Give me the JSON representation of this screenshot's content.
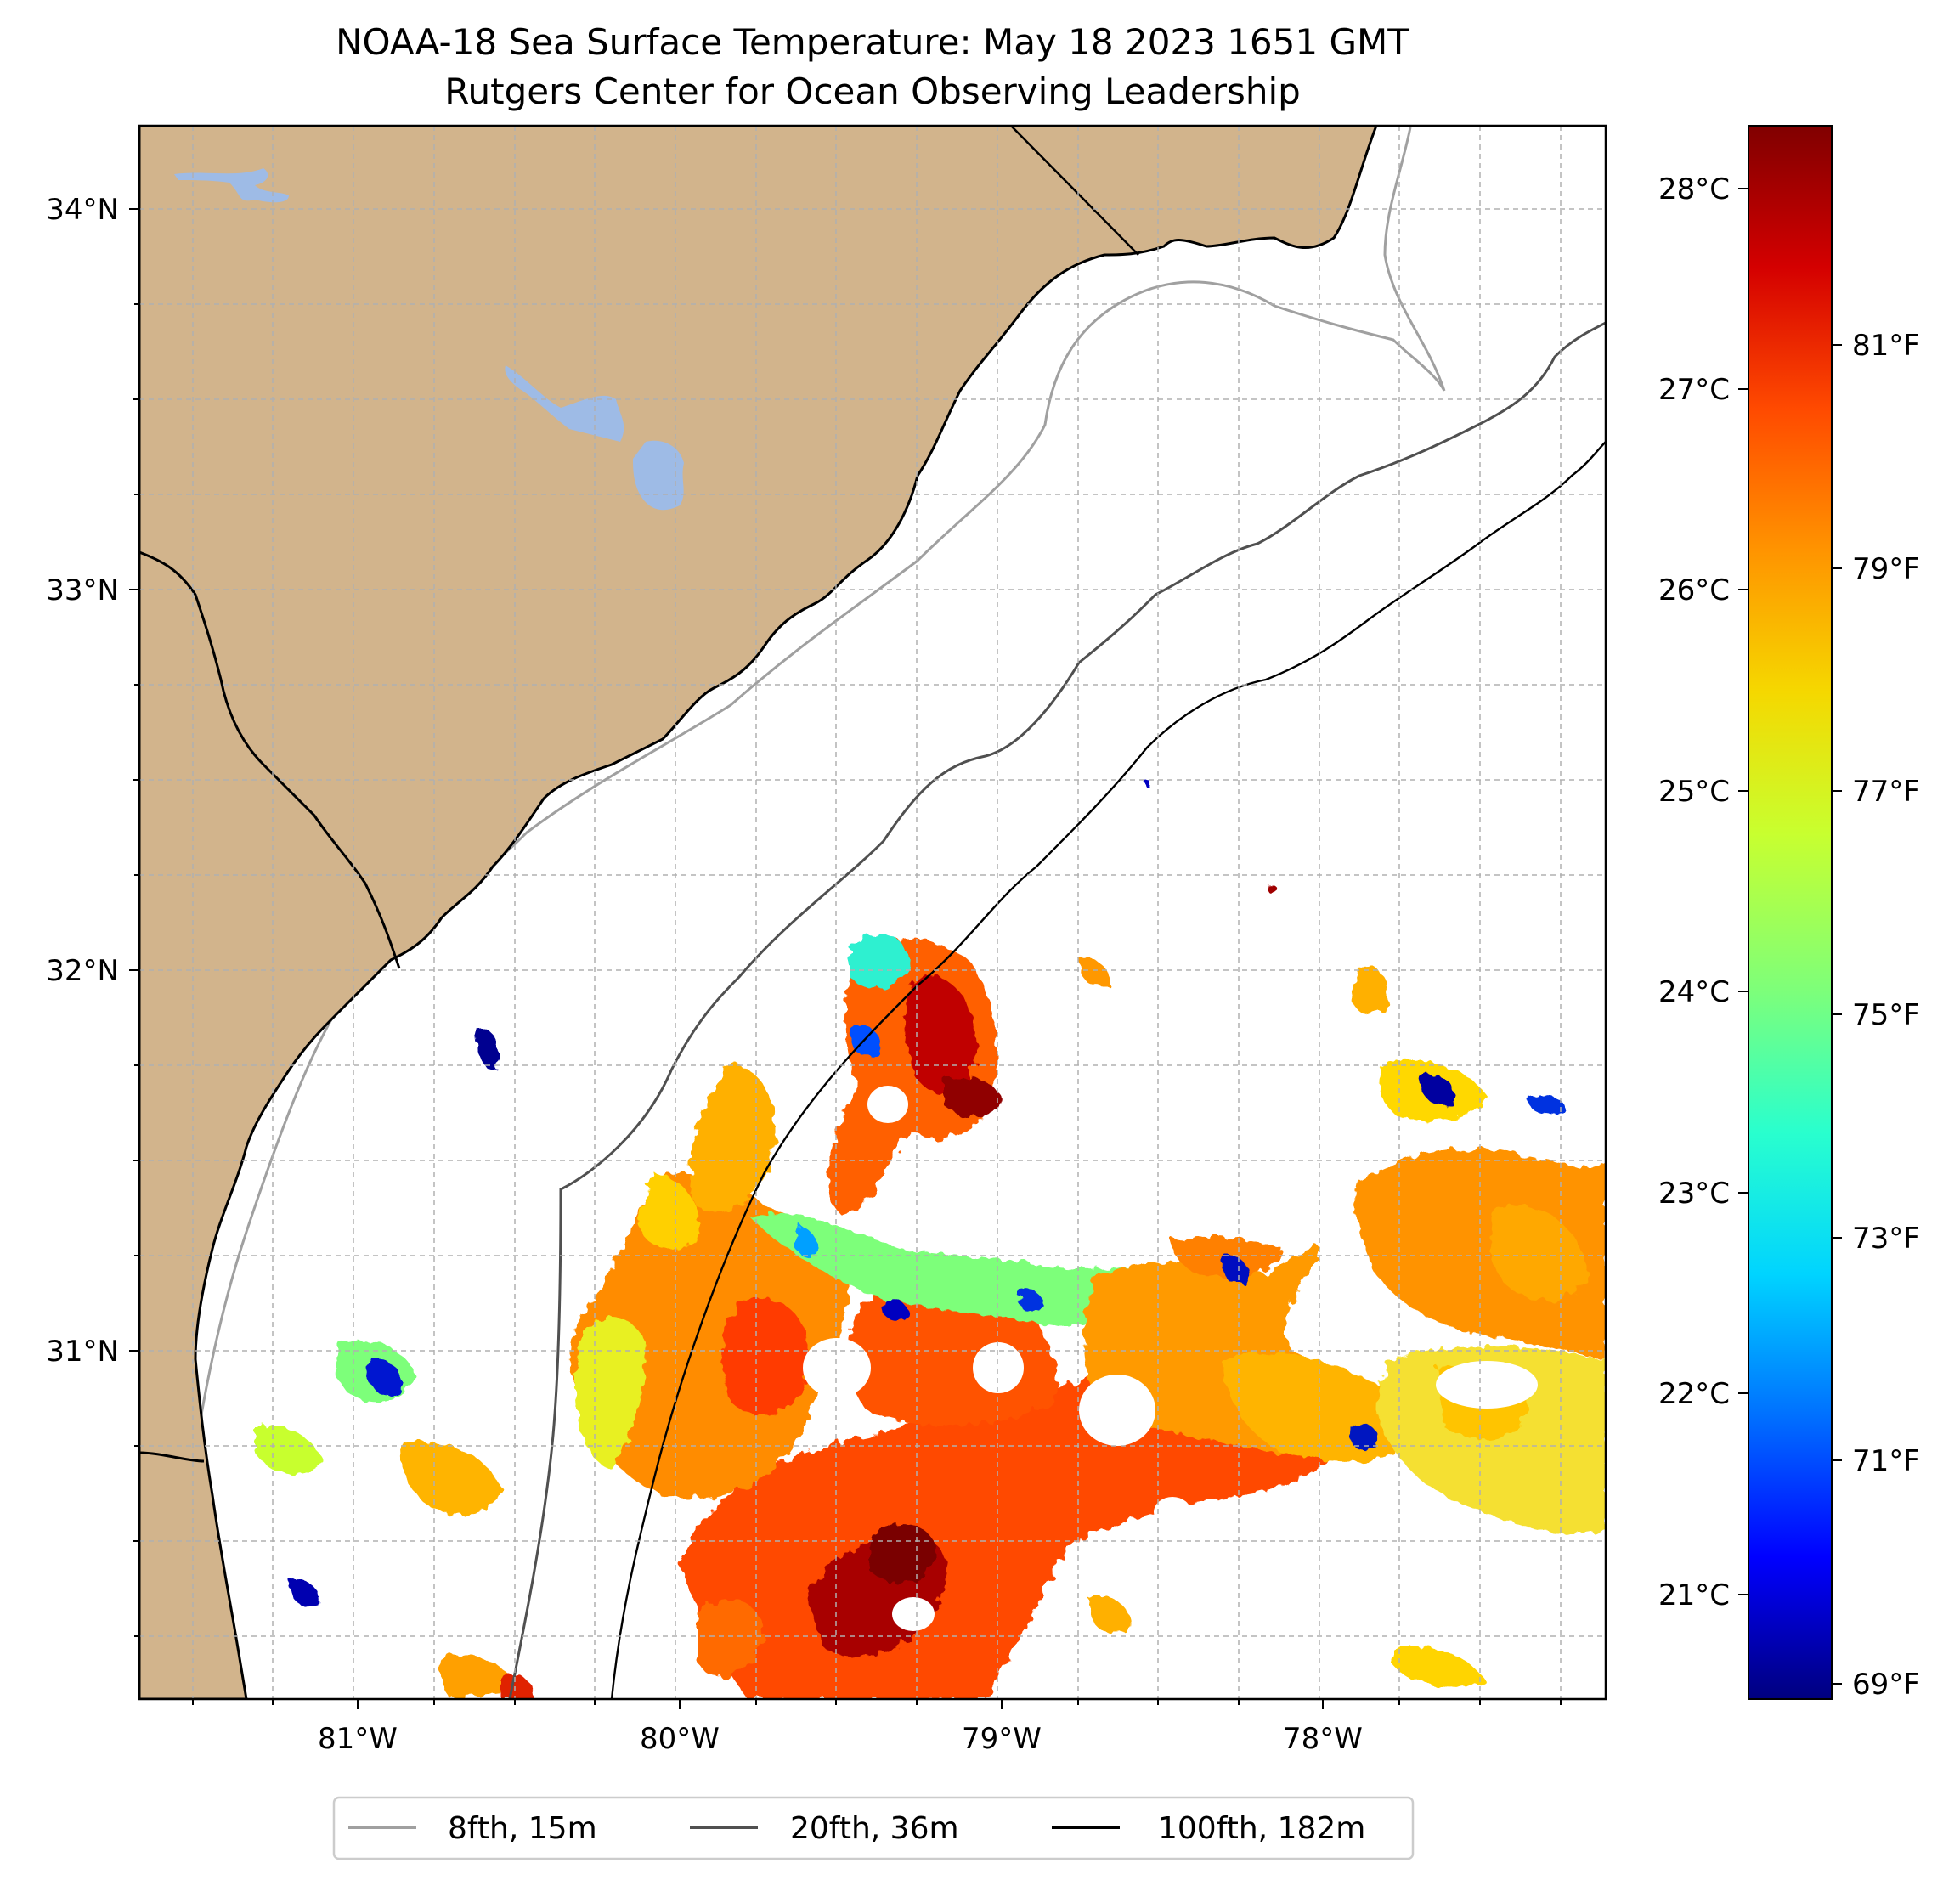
{
  "title": {
    "line1": "NOAA-18 Sea Surface Temperature: May 18 2023 1651 GMT",
    "line2": "Rutgers Center for Ocean Observing Leadership"
  },
  "axes": {
    "lat_labels": [
      "34°N",
      "33°N",
      "32°N",
      "31°N"
    ],
    "lon_labels": [
      "81°W",
      "80°W",
      "79°W",
      "78°W"
    ]
  },
  "colorbar": {
    "celsius_labels": [
      "28°C",
      "27°C",
      "26°C",
      "25°C",
      "24°C",
      "23°C",
      "22°C",
      "21°C"
    ],
    "fahrenheit_labels": [
      "81°F",
      "79°F",
      "77°F",
      "75°F",
      "73°F",
      "71°F",
      "69°F"
    ],
    "stops": [
      "#800000",
      "#d40000",
      "#ff4a00",
      "#ff9400",
      "#f5d800",
      "#c8ff2f",
      "#7dff7a",
      "#29ffce",
      "#00d4ff",
      "#0070ff",
      "#0000ff",
      "#00007f"
    ]
  },
  "legend": {
    "items": [
      {
        "label": "8fth, 15m",
        "color": "#a0a0a0"
      },
      {
        "label": "20fth, 36m",
        "color": "#505050"
      },
      {
        "label": "100fth, 182m",
        "color": "#000000"
      }
    ]
  },
  "colors": {
    "land": "#d2b48c",
    "water_body": "#9ebbe6",
    "ocean": "#ffffff"
  }
}
